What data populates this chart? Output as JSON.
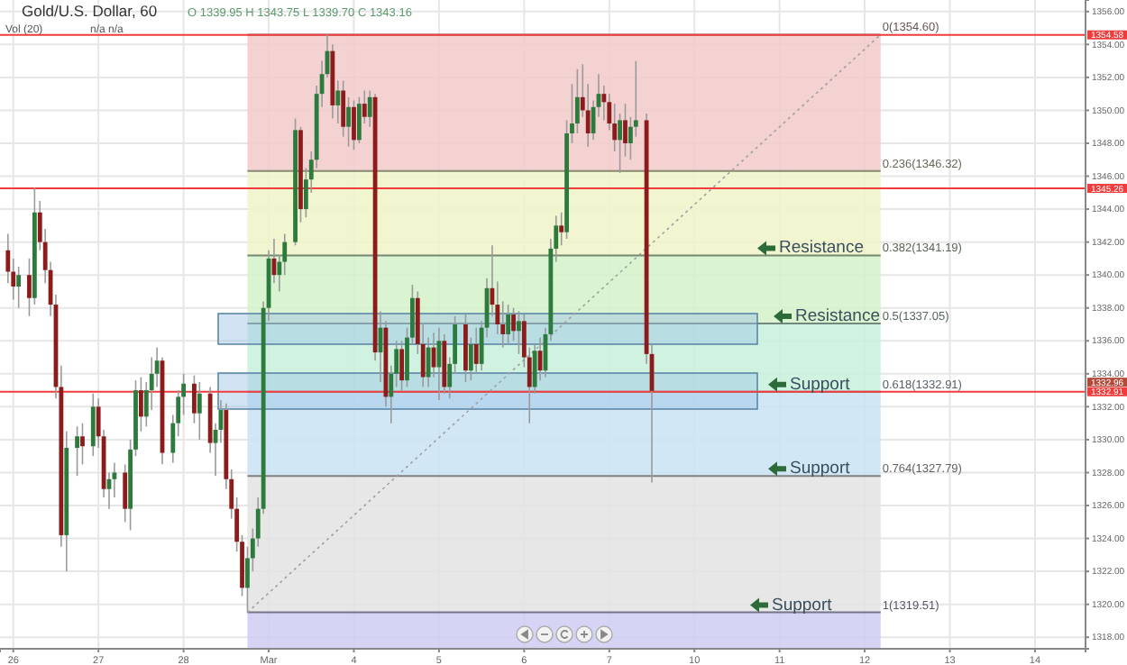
{
  "chart_data": {
    "type": "candlestick",
    "title": "Gold/U.S. Dollar, 60",
    "annotations": [
      "O 1339.95 H 1343.75 L 1339.70 C 1343.16",
      "Vol (20)",
      "n/a n/a",
      "1332.96",
      "Resistance",
      "Resistance",
      "Support",
      "Support",
      "Support"
    ],
    "categories": [
      null,
      null,
      "26",
      null,
      null,
      null,
      null,
      null,
      null,
      null,
      null,
      null,
      null,
      null,
      null,
      null,
      null,
      null,
      "27",
      null,
      null,
      null,
      null,
      null,
      null,
      null,
      null,
      null,
      null,
      null,
      null,
      null,
      null,
      null,
      "28",
      null,
      null,
      null,
      null,
      null,
      null,
      null,
      null,
      null,
      null,
      null,
      null,
      null,
      null,
      null,
      "Mar",
      null,
      null,
      null,
      null,
      null,
      null,
      null,
      null,
      null,
      null,
      null,
      null,
      null,
      null,
      null,
      "4",
      null,
      null,
      null,
      null,
      null,
      null,
      null,
      null,
      null,
      null,
      null,
      null,
      null,
      null,
      null,
      "5",
      null,
      null,
      null,
      null,
      null,
      null,
      null,
      null,
      null,
      null,
      null,
      null,
      null,
      null,
      null,
      "6",
      null,
      null,
      null,
      null,
      null,
      null,
      null,
      null,
      null,
      null,
      null,
      null,
      null,
      null,
      null,
      "7",
      null,
      null,
      null,
      null,
      null,
      null,
      null,
      null,
      null,
      null,
      null,
      null,
      null,
      null,
      null,
      "10",
      null,
      null,
      null,
      null,
      null,
      null,
      null,
      null,
      null,
      null,
      null,
      null,
      null,
      null,
      null,
      "11",
      null,
      null,
      null,
      null,
      null,
      null,
      null,
      null,
      null,
      null,
      null,
      null,
      null,
      null,
      null,
      "12",
      null,
      null,
      null,
      null,
      null,
      null,
      null,
      null,
      null,
      null,
      null,
      null,
      null,
      null,
      null,
      "13",
      null,
      null,
      null,
      null,
      null,
      null,
      null,
      null,
      null,
      null,
      null,
      null,
      null,
      null,
      null,
      "14",
      null,
      null,
      null,
      null,
      null,
      null,
      null,
      null,
      null
    ],
    "ohlc": [
      null,
      [
        1341.5,
        1342.5,
        1339.5,
        1340.2
      ],
      [
        1340.2,
        1341,
        1338.5,
        1339.3
      ],
      [
        1339.3,
        1340.5,
        1338,
        1340
      ],
      null,
      [
        1340,
        1341,
        1337.5,
        1338.6
      ],
      [
        1338.6,
        1345.3,
        1338.2,
        1343.8
      ],
      [
        1343.8,
        1344.5,
        1341.5,
        1342
      ],
      [
        1342,
        1342.8,
        1339.5,
        1340.3
      ],
      [
        1340.3,
        1340.8,
        1337.5,
        1338.2
      ],
      [
        1338.2,
        1338.8,
        1332.5,
        1333.2
      ],
      [
        1333.2,
        1334.5,
        1323.5,
        1324.2
      ],
      [
        1324.2,
        1330.5,
        1322,
        1329.5
      ],
      null,
      [
        1329.5,
        1330.8,
        1327.8,
        1330.2
      ],
      [
        1330.2,
        1331,
        1328.5,
        1329.6
      ],
      null,
      [
        1329.6,
        1332.8,
        1329,
        1332
      ],
      [
        1332,
        1332.5,
        1329.5,
        1330.2
      ],
      [
        1330.2,
        1330.6,
        1326.5,
        1327
      ],
      [
        1327,
        1328,
        1325.8,
        1327.6
      ],
      [
        1327.6,
        1328.6,
        1326.5,
        1328
      ],
      null,
      [
        1328,
        1328.5,
        1325,
        1325.8
      ],
      [
        1325.8,
        1330,
        1324.5,
        1329.4
      ],
      [
        1329.4,
        1333.6,
        1329,
        1333
      ],
      [
        1333,
        1333.8,
        1330.5,
        1331.4
      ],
      [
        1331.4,
        1333.5,
        1330.8,
        1333
      ],
      [
        1333,
        1335,
        1331.8,
        1334
      ],
      [
        1334,
        1335.6,
        1333.2,
        1334.8
      ],
      [
        1334.8,
        1335,
        1328.5,
        1329.2
      ],
      null,
      [
        1329.2,
        1331.5,
        1328.6,
        1331
      ],
      [
        1331,
        1333,
        1330.2,
        1332.6
      ],
      [
        1332.6,
        1334,
        1331.5,
        1333.4
      ],
      null,
      [
        1333.4,
        1333.9,
        1331,
        1331.6
      ],
      [
        1331.6,
        1333.5,
        1330,
        1332.8
      ],
      null,
      [
        1332.8,
        1333.2,
        1329.2,
        1329.8
      ],
      [
        1329.8,
        1331,
        1327.8,
        1330.6
      ],
      [
        1330.6,
        1332.4,
        1329.8,
        1331.8
      ],
      [
        1331.8,
        1332.2,
        1327,
        1327.6
      ],
      [
        1327.6,
        1328.2,
        1325.2,
        1325.8
      ],
      [
        1325.8,
        1326.5,
        1323.2,
        1323.8
      ],
      [
        1323.8,
        1324.2,
        1320.5,
        1321
      ],
      [
        1321,
        1323.5,
        1319.5,
        1322.8
      ],
      [
        1322.8,
        1324.6,
        1322,
        1324
      ],
      [
        1324,
        1326.5,
        1323.5,
        1325.8
      ],
      [
        1325.8,
        1338.4,
        1325.5,
        1338
      ],
      [
        1338,
        1341.5,
        1337.2,
        1341
      ],
      [
        1341,
        1342.2,
        1339.5,
        1340
      ],
      [
        1340,
        1341.2,
        1339,
        1340.8
      ],
      [
        1340.8,
        1342.5,
        1340,
        1342
      ],
      null,
      [
        1342,
        1349.5,
        1341.8,
        1348.8
      ],
      [
        1348.8,
        1349,
        1343.2,
        1344
      ],
      [
        1344,
        1346.5,
        1343.5,
        1345.8
      ],
      [
        1345.8,
        1347.5,
        1345,
        1347
      ],
      [
        1347,
        1351.5,
        1346.5,
        1351
      ],
      [
        1351,
        1353,
        1350.2,
        1352.2
      ],
      [
        1352.2,
        1354.6,
        1352,
        1353.6
      ],
      [
        1353.6,
        1354,
        1349.5,
        1350.3
      ],
      [
        1350.3,
        1351.8,
        1349.2,
        1351.2
      ],
      [
        1351.2,
        1351.8,
        1348.4,
        1349
      ],
      [
        1349,
        1350.8,
        1347.8,
        1350.2
      ],
      [
        1350.2,
        1350.6,
        1347.6,
        1348.2
      ],
      [
        1348.2,
        1350.8,
        1348,
        1350.4
      ],
      [
        1350.4,
        1351.2,
        1349.2,
        1349.6
      ],
      [
        1349.6,
        1351.2,
        1349,
        1350.8
      ],
      [
        1350.8,
        1351,
        1334.8,
        1335.3
      ],
      [
        1335.3,
        1337.8,
        1333.5,
        1336.8
      ],
      [
        1336.8,
        1337.2,
        1332,
        1332.6
      ],
      [
        1332.6,
        1334.5,
        1331,
        1334
      ],
      [
        1334,
        1336,
        1333.2,
        1335.5
      ],
      [
        1335.5,
        1336,
        1333,
        1333.6
      ],
      [
        1333.6,
        1336.8,
        1333.2,
        1336.2
      ],
      [
        1336.2,
        1339.4,
        1335.8,
        1338.6
      ],
      [
        1338.6,
        1339,
        1335.2,
        1335.8
      ],
      [
        1335.8,
        1337,
        1333.2,
        1333.8
      ],
      [
        1333.8,
        1336.2,
        1333.2,
        1335.6
      ],
      [
        1335.6,
        1336.5,
        1333.8,
        1334.4
      ],
      [
        1334.4,
        1336.8,
        1332.4,
        1336
      ],
      [
        1336,
        1336.4,
        1332.8,
        1333.2
      ],
      [
        1333.2,
        1335,
        1332.5,
        1334.6
      ],
      [
        1334.6,
        1337.5,
        1334,
        1337
      ],
      null,
      [
        1337,
        1337.6,
        1333.5,
        1334.2
      ],
      [
        1334.2,
        1336.2,
        1333.6,
        1335.8
      ],
      [
        1335.8,
        1336.8,
        1334,
        1334.6
      ],
      [
        1334.6,
        1337.2,
        1334.2,
        1336.8
      ],
      [
        1336.8,
        1339.8,
        1336.2,
        1339.2
      ],
      [
        1339.2,
        1341.8,
        1337.5,
        1338.2
      ],
      [
        1338.2,
        1339.6,
        1336.4,
        1337
      ],
      [
        1337,
        1338.4,
        1335.6,
        1336.4
      ],
      [
        1336.4,
        1338.2,
        1335.8,
        1337.6
      ],
      [
        1337.6,
        1338,
        1336,
        1336.6
      ],
      [
        1336.6,
        1337.8,
        1335.2,
        1337.2
      ],
      [
        1337.2,
        1337.6,
        1334.4,
        1335
      ],
      [
        1335,
        1335.6,
        1331,
        1333.2
      ],
      [
        1333.2,
        1335.8,
        1332.8,
        1335.4
      ],
      [
        1335.4,
        1336.2,
        1333.6,
        1334.2
      ],
      [
        1334.2,
        1336.8,
        1333.8,
        1336.4
      ],
      [
        1336.4,
        1342.2,
        1336,
        1341.6
      ],
      [
        1341.6,
        1343.6,
        1340.8,
        1343
      ],
      [
        1343,
        1343.8,
        1341.8,
        1342.6
      ],
      [
        1342.6,
        1349.4,
        1342.2,
        1348.6
      ],
      [
        1348.6,
        1351.6,
        1348,
        1349.2
      ],
      [
        1349.2,
        1352.5,
        1348.6,
        1350.8
      ],
      [
        1350.8,
        1352.8,
        1349.6,
        1350
      ],
      [
        1350,
        1351.6,
        1347.8,
        1348.6
      ],
      [
        1348.6,
        1350.6,
        1348.2,
        1350.2
      ],
      [
        1350.2,
        1352.2,
        1349.6,
        1351
      ],
      [
        1351,
        1351.5,
        1349.4,
        1350.5
      ],
      [
        1350.5,
        1351,
        1348.8,
        1349.2
      ],
      [
        1349.2,
        1350.4,
        1347.5,
        1348.2
      ],
      [
        1348.2,
        1349.8,
        1346.2,
        1349.4
      ],
      [
        1349.4,
        1350.4,
        1347.2,
        1348
      ],
      [
        1348,
        1349.6,
        1347,
        1349
      ],
      [
        1349,
        1353,
        1348.4,
        1349.4
      ],
      null,
      [
        1349.4,
        1349.8,
        1334.6,
        1335.2
      ],
      [
        1335.2,
        1335.8,
        1327.4,
        1332.96
      ],
      null,
      null,
      null,
      null,
      null,
      null,
      null,
      null,
      null,
      null,
      null,
      null,
      null,
      null,
      null,
      null,
      null,
      null,
      null,
      null,
      null,
      null,
      null,
      null,
      null,
      null,
      null,
      null,
      null,
      null,
      null,
      null,
      null,
      null,
      null,
      null,
      null,
      null,
      null,
      null,
      null,
      null,
      null,
      null,
      null,
      null,
      null,
      null,
      null,
      null,
      null,
      null,
      null,
      null,
      null,
      null,
      null,
      null,
      null,
      null,
      null,
      null,
      null,
      null,
      null,
      null,
      null,
      null,
      null,
      null,
      null,
      null,
      null,
      null,
      null,
      null,
      null,
      null,
      null,
      null,
      null
    ],
    "series": [
      {
        "type": "line",
        "color": "#a0a0a0",
        "line_style": "dotted",
        "values": [
          null,
          null,
          null,
          null,
          null,
          null,
          null,
          null,
          null,
          null,
          null,
          null,
          null,
          null,
          null,
          null,
          null,
          null,
          null,
          null,
          null,
          null,
          null,
          null,
          null,
          null,
          null,
          null,
          null,
          null,
          null,
          null,
          null,
          null,
          null,
          null,
          null,
          null,
          null,
          null,
          null,
          null,
          null,
          null,
          null,
          null,
          1319.51,
          null,
          null,
          null,
          null,
          null,
          null,
          null,
          null,
          null,
          null,
          null,
          null,
          null,
          null,
          null,
          null,
          null,
          null,
          null,
          null,
          null,
          null,
          null,
          null,
          null,
          null,
          null,
          null,
          null,
          null,
          null,
          null,
          null,
          null,
          null,
          null,
          null,
          null,
          null,
          null,
          null,
          null,
          null,
          null,
          null,
          null,
          null,
          null,
          null,
          null,
          null,
          null,
          null,
          null,
          null,
          null,
          null,
          null,
          null,
          null,
          null,
          null,
          null,
          null,
          null,
          null,
          null,
          null,
          null,
          null,
          null,
          null,
          null,
          null,
          null,
          null,
          null,
          null,
          null,
          null,
          null,
          null,
          null,
          null,
          null,
          null,
          null,
          null,
          null,
          null,
          null,
          null,
          null,
          null,
          null,
          null,
          null,
          null,
          null,
          null,
          null,
          null,
          null,
          null,
          null,
          null,
          null,
          null,
          null,
          null,
          null,
          null,
          null,
          null,
          null,
          null,
          null,
          null,
          1354.6,
          null,
          null,
          null,
          null,
          null,
          null,
          null,
          null,
          null,
          null,
          null,
          null,
          null,
          null,
          null,
          null,
          null,
          null,
          null,
          null,
          null,
          null,
          null,
          null,
          null,
          null,
          null,
          null,
          null,
          null,
          null,
          null,
          null,
          null,
          null,
          null,
          null,
          null
        ]
      }
    ],
    "ylim": [
      1317.3,
      1356.7
    ],
    "yticks": [
      {
        "value": 1318,
        "label": "1318.00"
      },
      {
        "value": 1320,
        "label": "1320.00"
      },
      {
        "value": 1322,
        "label": "1322.00"
      },
      {
        "value": 1324,
        "label": "1324.00"
      },
      {
        "value": 1326,
        "label": "1326.00"
      },
      {
        "value": 1328,
        "label": "1328.00"
      },
      {
        "value": 1330,
        "label": "1330.00"
      },
      {
        "value": 1332,
        "label": "1332.00"
      },
      {
        "value": 1334,
        "label": "1334.00"
      },
      {
        "value": 1336,
        "label": "1336.00"
      },
      {
        "value": 1338,
        "label": "1338.00"
      },
      {
        "value": 1340,
        "label": "1340.00"
      },
      {
        "value": 1342,
        "label": "1342.00"
      },
      {
        "value": 1344,
        "label": "1344.00"
      },
      {
        "value": 1346,
        "label": "1346.00"
      },
      {
        "value": 1348,
        "label": "1348.00"
      },
      {
        "value": 1350,
        "label": "1350.00"
      },
      {
        "value": 1352,
        "label": "1352.00"
      },
      {
        "value": 1354,
        "label": "1354.00"
      },
      {
        "value": 1356,
        "label": "1356.00"
      }
    ],
    "grid": true,
    "ref_lines": [
      {
        "axis": "y",
        "value": 1354.58,
        "label": "1354.58",
        "color": "#f03c3c"
      },
      {
        "axis": "y",
        "value": 1345.26,
        "label": "1345.26",
        "color": "#f03c3c"
      },
      {
        "axis": "y",
        "value": 1332.91,
        "label": "1332.91",
        "color": "#f03c3c"
      }
    ],
    "bands": [
      {
        "axis": "y",
        "from": 1346.32,
        "to": 1354.6,
        "label": "0(1354.60)",
        "color": "#f3caca"
      },
      {
        "axis": "y",
        "from": 1341.19,
        "to": 1346.32,
        "label": "0.236(1346.32)",
        "color": "#eef3c8"
      },
      {
        "axis": "y",
        "from": 1337.05,
        "to": 1341.19,
        "label": "0.382(1341.19)",
        "color": "#d3f1c8"
      },
      {
        "axis": "y",
        "from": 1332.91,
        "to": 1337.05,
        "label": "0.5(1337.05)",
        "color": "#c8f0dc"
      },
      {
        "axis": "y",
        "from": 1327.79,
        "to": 1332.91,
        "label": "0.618(1332.91)",
        "color": "#c9e3f3"
      },
      {
        "axis": "y",
        "from": 1319.51,
        "to": 1327.79,
        "label": "0.764(1327.79)",
        "color": "#e3e3e3"
      },
      {
        "axis": "y",
        "from": 1317.3,
        "to": 1319.51,
        "label": "1(1319.51)",
        "color": "#cfcdf2"
      }
    ]
  }
}
